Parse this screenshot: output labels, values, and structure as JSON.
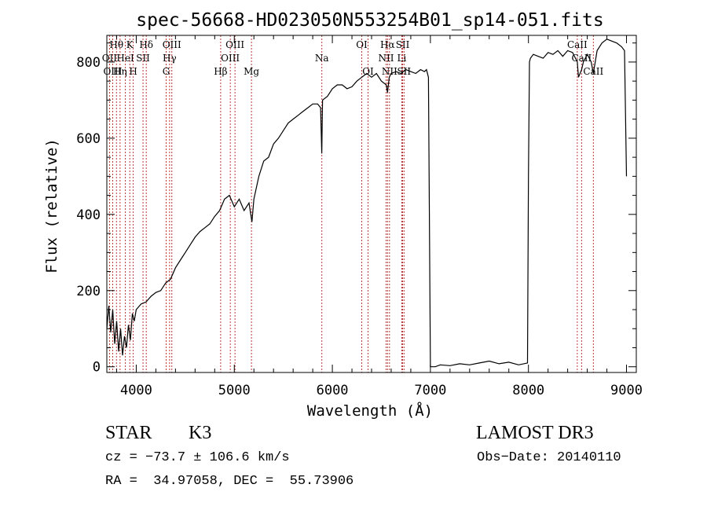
{
  "chart_data": {
    "type": "line",
    "title": "spec-56668-HD023050N553254B01_sp14-051.fits",
    "xlabel": "Wavelength (Å)",
    "ylabel": "Flux (relative)",
    "xlim": [
      3700,
      9100
    ],
    "ylim": [
      -15,
      870
    ],
    "x_ticks": [
      4000,
      5000,
      6000,
      7000,
      8000,
      9000
    ],
    "y_ticks": [
      0,
      200,
      400,
      600,
      800
    ],
    "grid": false,
    "series": [
      {
        "x": [
          3700,
          3720,
          3740,
          3760,
          3780,
          3800,
          3820,
          3840,
          3860,
          3880,
          3900,
          3920,
          3940,
          3960,
          3980,
          4000,
          4050,
          4100,
          4150,
          4200,
          4250,
          4300,
          4350,
          4400,
          4450,
          4500,
          4550,
          4600,
          4650,
          4700,
          4750,
          4800,
          4850,
          4900,
          4950,
          5000,
          5050,
          5100,
          5150,
          5180,
          5200,
          5250,
          5300,
          5350,
          5400,
          5450,
          5500,
          5550,
          5600,
          5650,
          5700,
          5750,
          5800,
          5850,
          5880,
          5892,
          5900,
          5950,
          6000,
          6050,
          6100,
          6150,
          6200,
          6250,
          6300,
          6350,
          6400,
          6450,
          6500,
          6550,
          6563,
          6580,
          6600,
          6650,
          6700,
          6750,
          6800,
          6850,
          6900,
          6940,
          6960,
          6980,
          7000,
          7050,
          7100,
          7200,
          7300,
          7400,
          7500,
          7600,
          7700,
          7800,
          7900,
          7990,
          8000,
          8010,
          8020,
          8050,
          8100,
          8150,
          8200,
          8250,
          8300,
          8350,
          8400,
          8450,
          8498,
          8510,
          8542,
          8560,
          8600,
          8640,
          8662,
          8700,
          8750,
          8800,
          8850,
          8900,
          8950,
          8980,
          9000
        ],
        "y": [
          100,
          160,
          90,
          150,
          60,
          120,
          40,
          100,
          30,
          80,
          50,
          110,
          70,
          140,
          120,
          150,
          165,
          170,
          185,
          195,
          200,
          220,
          230,
          260,
          280,
          300,
          320,
          340,
          355,
          365,
          375,
          395,
          410,
          440,
          450,
          420,
          440,
          410,
          430,
          380,
          440,
          500,
          540,
          550,
          585,
          600,
          620,
          640,
          650,
          660,
          670,
          680,
          690,
          690,
          680,
          560,
          700,
          710,
          730,
          740,
          740,
          730,
          735,
          750,
          760,
          770,
          760,
          770,
          750,
          740,
          720,
          760,
          770,
          775,
          770,
          780,
          775,
          770,
          780,
          775,
          780,
          760,
          0,
          0,
          5,
          3,
          8,
          5,
          10,
          15,
          8,
          12,
          5,
          10,
          500,
          800,
          810,
          820,
          815,
          810,
          825,
          820,
          830,
          815,
          830,
          825,
          800,
          760,
          780,
          800,
          820,
          800,
          770,
          830,
          850,
          860,
          855,
          850,
          840,
          830,
          500
        ]
      }
    ],
    "spectral_lines": [
      {
        "name": "Hθ",
        "x": 3798,
        "row": 0
      },
      {
        "name": "K",
        "x": 3934,
        "row": 0
      },
      {
        "name": "Hδ",
        "x": 4102,
        "row": 0
      },
      {
        "name": "OIII",
        "x": 4363,
        "row": 0
      },
      {
        "name": "OIII",
        "x": 5007,
        "row": 0
      },
      {
        "name": "OI",
        "x": 6300,
        "row": 0
      },
      {
        "name": "Hα",
        "x": 6563,
        "row": 0
      },
      {
        "name": "SII",
        "x": 6717,
        "row": 0
      },
      {
        "name": "CaII",
        "x": 8498,
        "row": 0
      },
      {
        "name": "OII",
        "x": 3727,
        "row": 1
      },
      {
        "name": "HeI",
        "x": 3889,
        "row": 1
      },
      {
        "name": "SII",
        "x": 4069,
        "row": 1
      },
      {
        "name": "Hγ",
        "x": 4340,
        "row": 1
      },
      {
        "name": "OIII",
        "x": 4959,
        "row": 1
      },
      {
        "name": "Na",
        "x": 5893,
        "row": 1
      },
      {
        "name": "NII",
        "x": 6548,
        "row": 1
      },
      {
        "name": "Li",
        "x": 6708,
        "row": 1
      },
      {
        "name": "CaII",
        "x": 8542,
        "row": 1
      },
      {
        "name": "OIII",
        "x": 3760,
        "row": 2
      },
      {
        "name": "Hη",
        "x": 3835,
        "row": 2
      },
      {
        "name": "H",
        "x": 3969,
        "row": 2
      },
      {
        "name": "G",
        "x": 4305,
        "row": 2
      },
      {
        "name": "Hβ",
        "x": 4861,
        "row": 2
      },
      {
        "name": "Mg",
        "x": 5175,
        "row": 2
      },
      {
        "name": "OI",
        "x": 6364,
        "row": 2
      },
      {
        "name": "NII",
        "x": 6583,
        "row": 2
      },
      {
        "name": "SII",
        "x": 6731,
        "row": 2
      },
      {
        "name": "CaII",
        "x": 8662,
        "row": 2
      }
    ]
  },
  "footer": {
    "object_class": "STAR",
    "subclass": "K3",
    "survey": "LAMOST DR3",
    "cz": "cz = −73.7 ± 106.6 km/s",
    "obs_date": "Obs−Date: 20140110",
    "coords": "RA =  34.97058, DEC =  55.73906"
  },
  "colors": {
    "spectrum": "#000000",
    "line_marker": "#b22222",
    "axes": "#000000"
  }
}
